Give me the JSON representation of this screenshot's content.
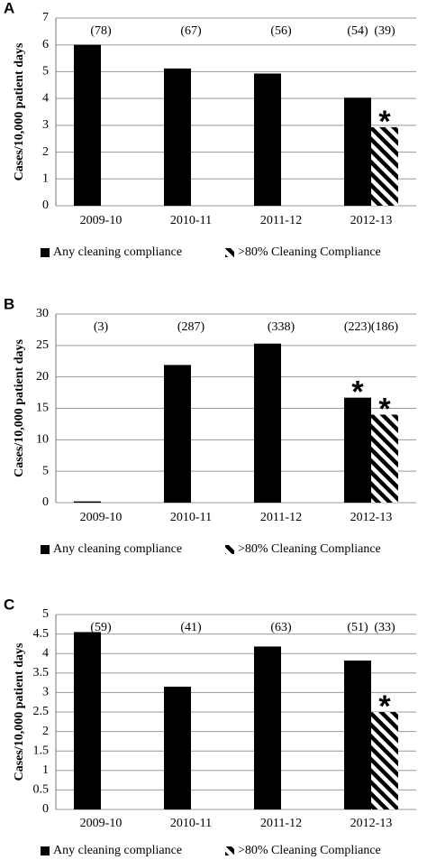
{
  "chart_data": [
    {
      "type": "bar",
      "title": "A",
      "ylabel": "Cases/10,000 patient days",
      "categories": [
        "2009-10",
        "2010-11",
        "2011-12",
        "2012-13"
      ],
      "ylim": [
        0,
        7
      ],
      "yticks": [
        0,
        1,
        2,
        3,
        4,
        5,
        6,
        7
      ],
      "grid": true,
      "series": [
        {
          "name": "Any cleaning compliance",
          "color": "#000000",
          "values": [
            6.0,
            5.12,
            4.93,
            4.03
          ],
          "count_labels": [
            "(78)",
            "(67)",
            "(56)",
            "(54)"
          ],
          "significance": [
            null,
            null,
            null,
            null
          ]
        },
        {
          "name": ">80% Cleaning Compliance",
          "color": "#000000",
          "hatch": true,
          "values": [
            null,
            null,
            null,
            2.93
          ],
          "count_labels": [
            null,
            null,
            null,
            "(39)"
          ],
          "significance": [
            null,
            null,
            null,
            "*"
          ]
        }
      ]
    },
    {
      "type": "bar",
      "title": "B",
      "ylabel": "Cases/10,000 patient days",
      "categories": [
        "2009-10",
        "2010-11",
        "2011-12",
        "2012-13"
      ],
      "ylim": [
        0,
        30
      ],
      "yticks": [
        0,
        5,
        10,
        15,
        20,
        25,
        30
      ],
      "grid": true,
      "series": [
        {
          "name": "Any cleaning compliance",
          "color": "#000000",
          "values": [
            0.2,
            21.9,
            25.3,
            16.7
          ],
          "count_labels": [
            "(3)",
            "(287)",
            "(338)",
            "(223)"
          ],
          "significance": [
            null,
            null,
            null,
            "*"
          ]
        },
        {
          "name": ">80% Cleaning Compliance",
          "color": "#000000",
          "hatch": true,
          "values": [
            null,
            null,
            null,
            14.0
          ],
          "count_labels": [
            null,
            null,
            null,
            "(186)"
          ],
          "significance": [
            null,
            null,
            null,
            "*"
          ]
        }
      ]
    },
    {
      "type": "bar",
      "title": "C",
      "ylabel": "Cases/10,000 patient days",
      "categories": [
        "2009-10",
        "2010-11",
        "2011-12",
        "2012-13"
      ],
      "ylim": [
        0,
        5
      ],
      "yticks": [
        0,
        0.5,
        1,
        1.5,
        2,
        2.5,
        3,
        3.5,
        4,
        4.5,
        5
      ],
      "grid": true,
      "series": [
        {
          "name": "Any cleaning compliance",
          "color": "#000000",
          "values": [
            4.55,
            3.15,
            4.18,
            3.82
          ],
          "count_labels": [
            "(59)",
            "(41)",
            "(63)",
            "(51)"
          ],
          "significance": [
            null,
            null,
            null,
            null
          ]
        },
        {
          "name": ">80% Cleaning Compliance",
          "color": "#000000",
          "hatch": true,
          "values": [
            null,
            null,
            null,
            2.5
          ],
          "count_labels": [
            null,
            null,
            null,
            "(33)"
          ],
          "significance": [
            null,
            null,
            null,
            "*"
          ]
        }
      ]
    }
  ]
}
